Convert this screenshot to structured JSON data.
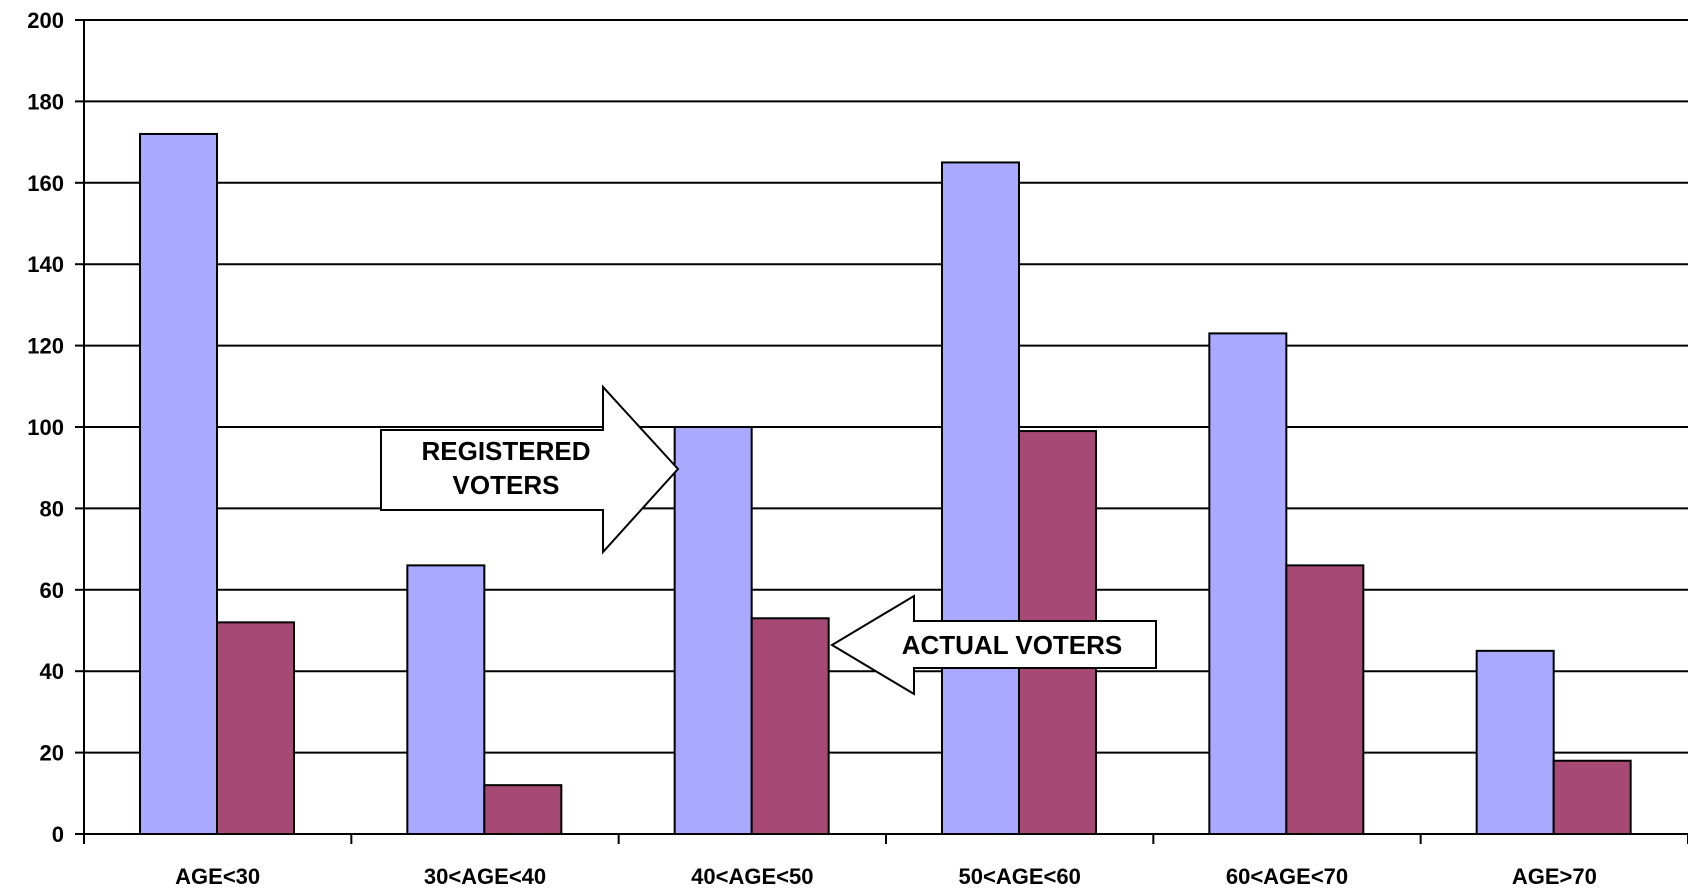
{
  "chart_data": {
    "type": "bar",
    "categories": [
      "AGE<30",
      "30<AGE<40",
      "40<AGE<50",
      "50<AGE<60",
      "60<AGE<70",
      "AGE>70"
    ],
    "series": [
      {
        "values": [
          172,
          66,
          100,
          165,
          123,
          45
        ],
        "color": "#a9aaff"
      },
      {
        "values": [
          52,
          12,
          53,
          99,
          66,
          18
        ],
        "color": "#a64a75"
      }
    ],
    "ylim": [
      0,
      200
    ],
    "yticks": [
      0,
      20,
      40,
      60,
      80,
      100,
      120,
      140,
      160,
      180,
      200
    ],
    "grid": true,
    "annotations": [
      {
        "lines": [
          "REGISTERED",
          "VOTERS"
        ],
        "points_to": "series 0, 40<AGE<50"
      },
      {
        "lines": [
          "ACTUAL VOTERS"
        ],
        "points_to": "series 1, 40<AGE<50"
      }
    ]
  }
}
